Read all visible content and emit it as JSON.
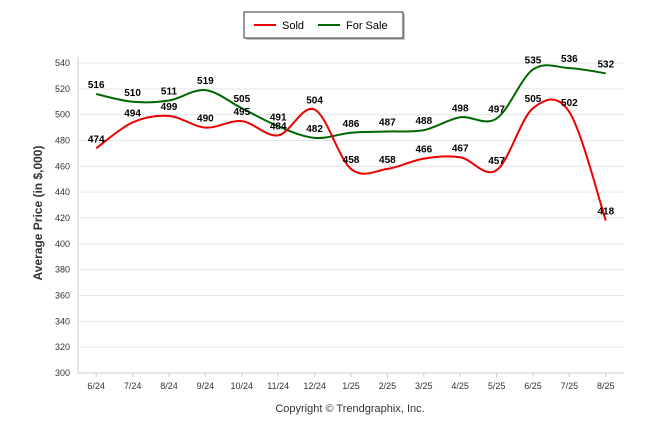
{
  "chart_data": {
    "type": "line",
    "categories": [
      "6/24",
      "7/24",
      "8/24",
      "9/24",
      "10/24",
      "11/24",
      "12/24",
      "1/25",
      "2/25",
      "3/25",
      "4/25",
      "5/25",
      "6/25",
      "7/25",
      "8/25"
    ],
    "series": [
      {
        "name": "Sold",
        "color": "#ee0000",
        "values": [
          474,
          494,
          499,
          490,
          495,
          484,
          504,
          458,
          458,
          466,
          467,
          457,
          505,
          502,
          418
        ]
      },
      {
        "name": "For Sale",
        "color": "#006600",
        "values": [
          516,
          510,
          511,
          519,
          505,
          491,
          482,
          486,
          487,
          488,
          498,
          497,
          535,
          536,
          532
        ]
      }
    ],
    "title": "",
    "xlabel": "",
    "ylabel": "Average Price (in $,000)",
    "ylim": [
      300,
      540
    ],
    "yticks": [
      300,
      320,
      340,
      360,
      380,
      400,
      420,
      440,
      460,
      480,
      500,
      520,
      540
    ],
    "grid": true,
    "legend_position": "top-center",
    "credit": "Copyright © Trendgraphix, Inc."
  }
}
